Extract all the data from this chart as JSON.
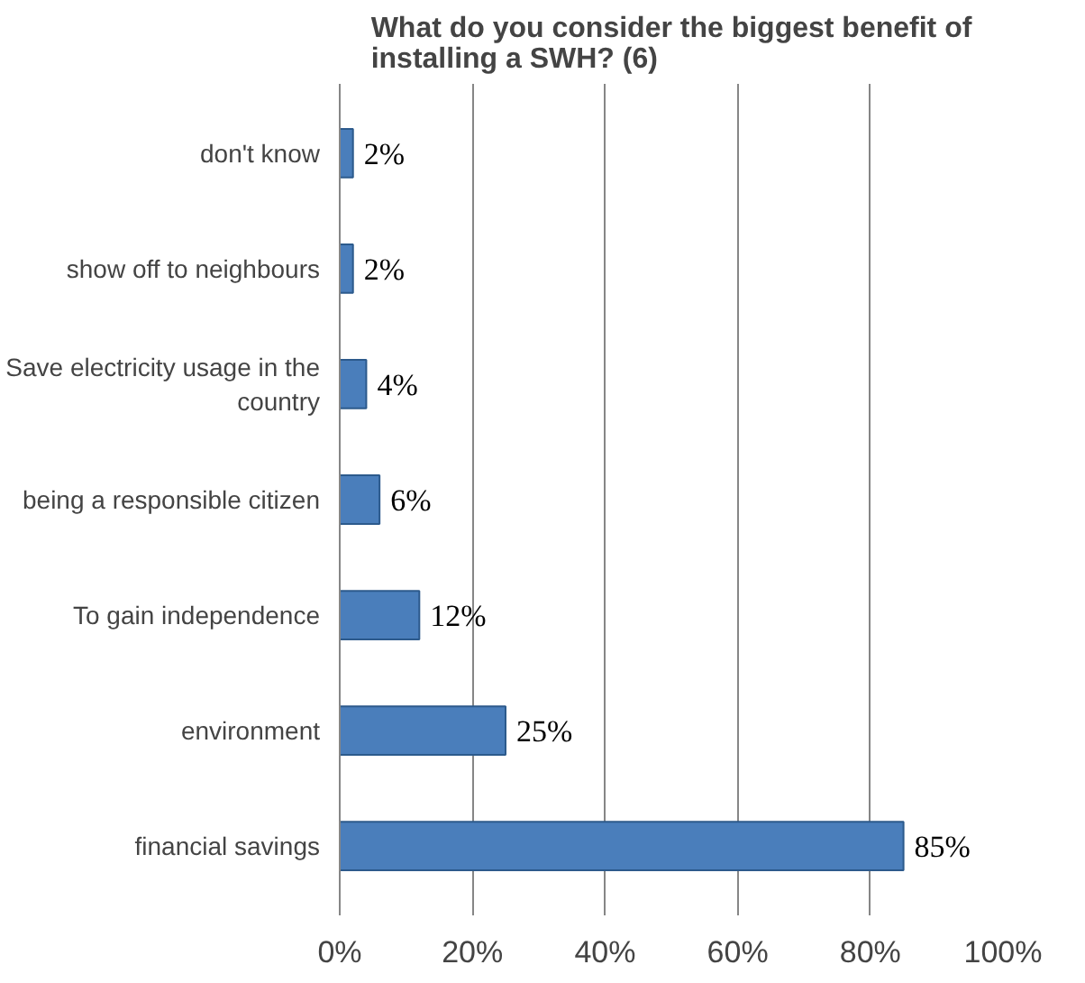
{
  "chart_data": {
    "type": "bar",
    "orientation": "horizontal",
    "title": "What do you consider the biggest benefit of installing a SWH? (6)",
    "categories": [
      "don't know",
      "show off to neighbours",
      "Save electricity usage in the country",
      "being a responsible citizen",
      "To gain independence",
      "environment",
      "financial savings"
    ],
    "values": [
      2,
      2,
      4,
      6,
      12,
      25,
      85
    ],
    "value_labels": [
      "2%",
      "2%",
      "4%",
      "6%",
      "12%",
      "25%",
      "85%"
    ],
    "color": "#4a7ebb",
    "xlim": [
      0,
      100
    ],
    "xticks": [
      {
        "value": 0,
        "label": "0%"
      },
      {
        "value": 20,
        "label": "20%"
      },
      {
        "value": 40,
        "label": "40%"
      },
      {
        "value": 60,
        "label": "60%"
      },
      {
        "value": 80,
        "label": "80%"
      },
      {
        "value": 100,
        "label": "100%"
      }
    ],
    "grid": "x"
  }
}
